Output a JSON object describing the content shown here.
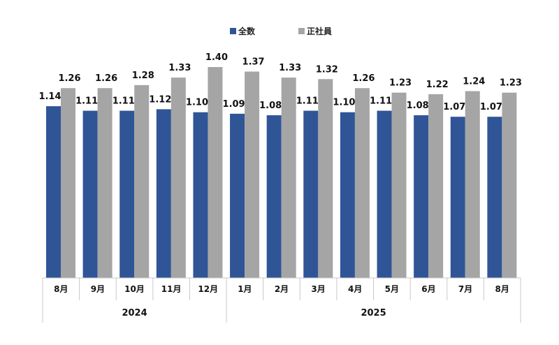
{
  "chart_data": {
    "type": "bar",
    "categories": [
      "8月",
      "9月",
      "10月",
      "11月",
      "12月",
      "1月",
      "2月",
      "3月",
      "4月",
      "5月",
      "6月",
      "7月",
      "8月"
    ],
    "groups": [
      {
        "label": "2024",
        "categories": [
          "8月",
          "9月",
          "10月",
          "11月",
          "12月"
        ]
      },
      {
        "label": "2025",
        "categories": [
          "1月",
          "2月",
          "3月",
          "4月",
          "5月",
          "6月",
          "7月",
          "8月"
        ]
      }
    ],
    "series": [
      {
        "name": "全数",
        "color": "#2f5597",
        "values": [
          1.14,
          1.11,
          1.11,
          1.12,
          1.1,
          1.09,
          1.08,
          1.11,
          1.1,
          1.11,
          1.08,
          1.07,
          1.07
        ]
      },
      {
        "name": "正社員",
        "color": "#a5a5a5",
        "values": [
          1.26,
          1.26,
          1.28,
          1.33,
          1.4,
          1.37,
          1.33,
          1.32,
          1.26,
          1.23,
          1.22,
          1.24,
          1.23
        ]
      }
    ],
    "title": "",
    "xlabel": "",
    "ylabel": "",
    "ylim": [
      0,
      1.4
    ],
    "grid": false,
    "legend": "top-center",
    "data_labels": true
  }
}
